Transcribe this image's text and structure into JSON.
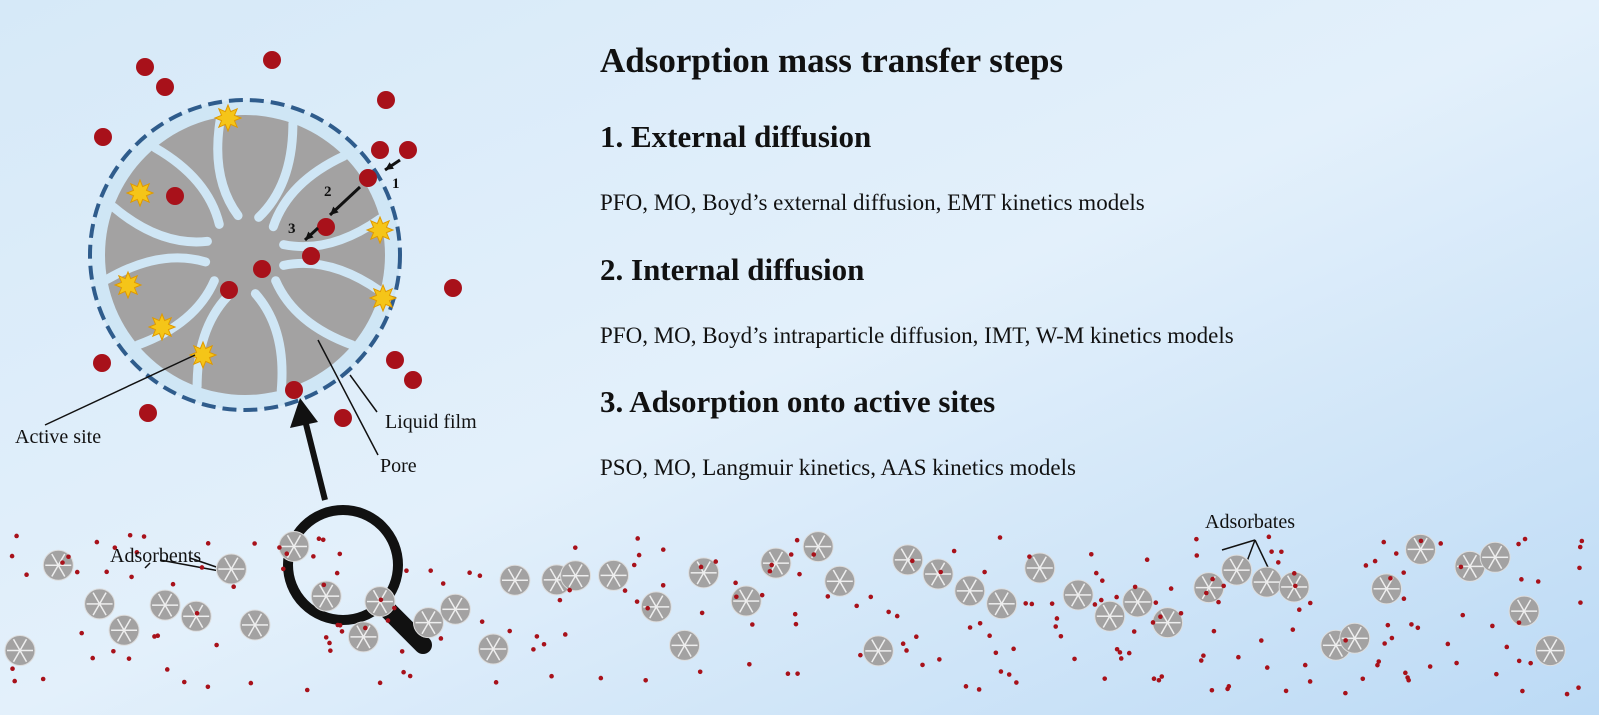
{
  "title": "Adsorption mass transfer steps",
  "steps": [
    {
      "heading": "1. External diffusion",
      "models": "PFO, MO, Boyd’s external diffusion, EMT kinetics models"
    },
    {
      "heading": "2. Internal diffusion",
      "models": "PFO, MO, Boyd’s intraparticle diffusion, IMT, W-M kinetics models"
    },
    {
      "heading": "3. Adsorption onto active sites",
      "models": "PSO, MO, Langmuir kinetics, AAS kinetics models"
    }
  ],
  "step_markers": [
    "1",
    "2",
    "3"
  ],
  "figure_labels": {
    "active_site": "Active site",
    "liquid_film": "Liquid film",
    "pore": "Pore",
    "adsorbents": "Adsorbents",
    "adsorbates": "Adsorbates"
  }
}
